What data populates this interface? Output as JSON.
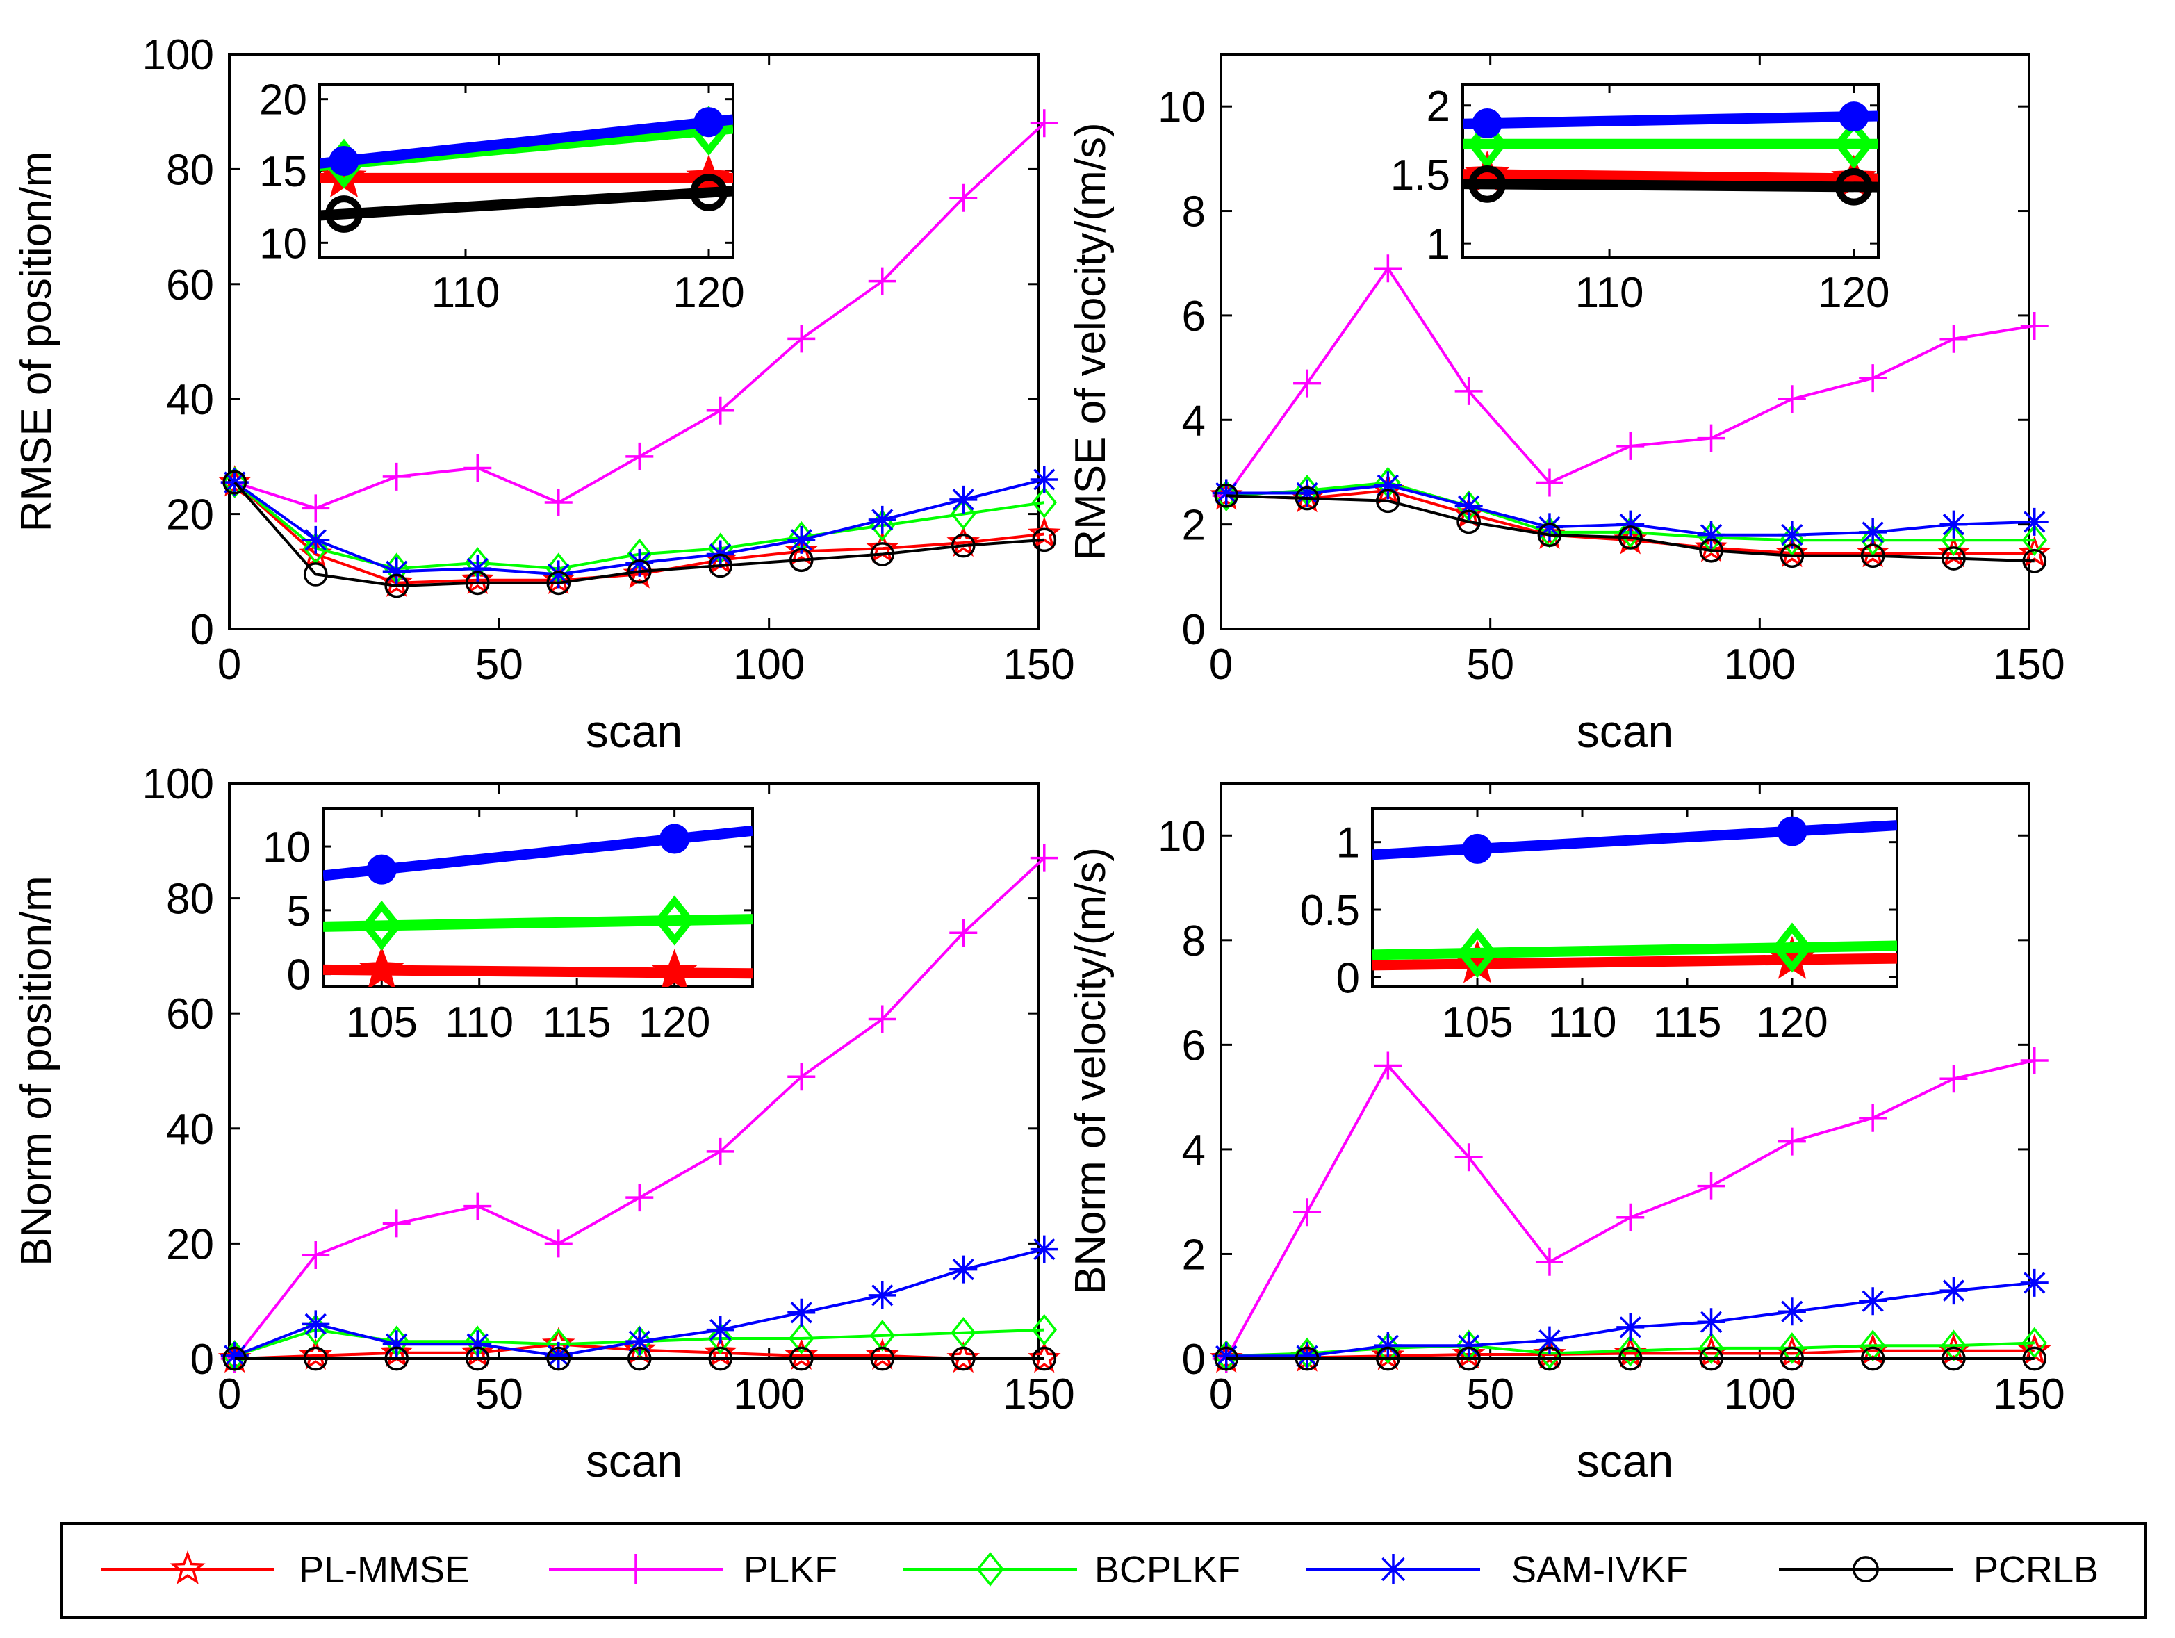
{
  "series_styles": [
    {
      "key": "pl_mmse",
      "color": "#ff0000",
      "marker": "star"
    },
    {
      "key": "plkf",
      "color": "#ff00ff",
      "marker": "plus"
    },
    {
      "key": "bcplkf",
      "color": "#00ff00",
      "marker": "diamond"
    },
    {
      "key": "sam_ivkf",
      "color": "#0000ff",
      "marker": "asterisk"
    },
    {
      "key": "pcrlb",
      "color": "#000000",
      "marker": "circle"
    }
  ],
  "legend": {
    "entries": [
      "PL-MMSE",
      "PLKF",
      "BCPLKF",
      "SAM-IVKF",
      "PCRLB"
    ]
  },
  "chart_data": [
    {
      "type": "line",
      "ylabel": "RMSE of position/m",
      "xlabel": "scan",
      "xlim": [
        0,
        150
      ],
      "ylim": [
        0,
        100
      ],
      "xticks": [
        0,
        50,
        100,
        150
      ],
      "yticks": [
        0,
        20,
        40,
        60,
        80,
        100
      ],
      "x": [
        1,
        16,
        31,
        46,
        61,
        76,
        91,
        106,
        121,
        136,
        151
      ],
      "series": [
        {
          "name": "PL-MMSE",
          "values": [
            25.5,
            13,
            8,
            8.5,
            8.5,
            9.5,
            12,
            13.5,
            14,
            15,
            16.5
          ]
        },
        {
          "name": "PLKF",
          "values": [
            25.5,
            21,
            26.5,
            28,
            22,
            30,
            38,
            50.5,
            60.5,
            75,
            88
          ]
        },
        {
          "name": "BCPLKF",
          "values": [
            25.5,
            14,
            10.5,
            11.5,
            10.5,
            13,
            14,
            16,
            18,
            20,
            22
          ]
        },
        {
          "name": "SAM-IVKF",
          "values": [
            25.5,
            15.5,
            10,
            10.5,
            9.5,
            11.5,
            13,
            15.5,
            19,
            22.5,
            26
          ]
        },
        {
          "name": "PCRLB",
          "values": [
            25.5,
            9.5,
            7.5,
            8,
            8,
            10,
            11,
            12,
            13,
            14.5,
            15.5
          ]
        }
      ],
      "inset": {
        "xlim": [
          104,
          121
        ],
        "ylim": [
          9,
          21
        ],
        "xticks": [
          110,
          120
        ],
        "yticks": [
          10,
          15,
          20
        ],
        "x": [
          105,
          120
        ],
        "series": [
          {
            "name": "PL-MMSE",
            "values": [
              14.5,
              14.5
            ]
          },
          {
            "name": "BCPLKF",
            "values": [
              15.5,
              17.8
            ]
          },
          {
            "name": "SAM-IVKF",
            "values": [
              15.7,
              18.4
            ]
          },
          {
            "name": "PCRLB",
            "values": [
              12,
              13.5
            ]
          }
        ]
      }
    },
    {
      "type": "line",
      "ylabel": "RMSE of velocity/(m/s)",
      "xlabel": "scan",
      "xlim": [
        0,
        150
      ],
      "ylim": [
        0,
        11
      ],
      "xticks": [
        0,
        50,
        100,
        150
      ],
      "yticks": [
        0,
        2,
        4,
        6,
        8,
        10
      ],
      "x": [
        1,
        16,
        31,
        46,
        61,
        76,
        91,
        106,
        121,
        136,
        151
      ],
      "series": [
        {
          "name": "PL-MMSE",
          "values": [
            2.55,
            2.5,
            2.65,
            2.2,
            1.8,
            1.7,
            1.55,
            1.45,
            1.45,
            1.45,
            1.45
          ]
        },
        {
          "name": "PLKF",
          "values": [
            2.55,
            4.7,
            6.9,
            4.55,
            2.8,
            3.5,
            3.65,
            4.4,
            4.8,
            5.55,
            5.8
          ]
        },
        {
          "name": "BCPLKF",
          "values": [
            2.55,
            2.65,
            2.8,
            2.35,
            1.85,
            1.85,
            1.75,
            1.7,
            1.7,
            1.7,
            1.7
          ]
        },
        {
          "name": "SAM-IVKF",
          "values": [
            2.6,
            2.6,
            2.75,
            2.35,
            1.95,
            2.0,
            1.8,
            1.8,
            1.85,
            2.0,
            2.05
          ]
        },
        {
          "name": "PCRLB",
          "values": [
            2.55,
            2.5,
            2.45,
            2.05,
            1.8,
            1.75,
            1.5,
            1.4,
            1.4,
            1.35,
            1.3
          ]
        }
      ],
      "inset": {
        "xlim": [
          104,
          121
        ],
        "ylim": [
          0.9,
          2.15
        ],
        "xticks": [
          110,
          120
        ],
        "yticks": [
          1,
          1.5,
          2
        ],
        "x": [
          105,
          120
        ],
        "series": [
          {
            "name": "PL-MMSE",
            "values": [
              1.5,
              1.47
            ]
          },
          {
            "name": "BCPLKF",
            "values": [
              1.72,
              1.72
            ]
          },
          {
            "name": "SAM-IVKF",
            "values": [
              1.87,
              1.92
            ]
          },
          {
            "name": "PCRLB",
            "values": [
              1.43,
              1.41
            ]
          }
        ]
      }
    },
    {
      "type": "line",
      "ylabel": "BNorm of position/m",
      "xlabel": "scan",
      "xlim": [
        0,
        150
      ],
      "ylim": [
        0,
        100
      ],
      "xticks": [
        0,
        50,
        100,
        150
      ],
      "yticks": [
        0,
        20,
        40,
        60,
        80,
        100
      ],
      "x": [
        1,
        16,
        31,
        46,
        61,
        76,
        91,
        106,
        121,
        136,
        151
      ],
      "series": [
        {
          "name": "PL-MMSE",
          "values": [
            0,
            0.5,
            1,
            1,
            2.5,
            1.5,
            1,
            0.5,
            0.5,
            0,
            0
          ]
        },
        {
          "name": "PLKF",
          "values": [
            0,
            18,
            23.5,
            26.5,
            20,
            28,
            36,
            49,
            59,
            74,
            87
          ]
        },
        {
          "name": "BCPLKF",
          "values": [
            0.5,
            5,
            3,
            3,
            2.5,
            3,
            3.5,
            3.5,
            4,
            4.5,
            5
          ]
        },
        {
          "name": "SAM-IVKF",
          "values": [
            0.5,
            6,
            2.5,
            2.5,
            0.5,
            3,
            5,
            8,
            11,
            15.5,
            19
          ]
        },
        {
          "name": "PCRLB",
          "values": [
            0,
            0,
            0,
            0,
            0,
            0,
            0,
            0,
            0,
            0,
            0
          ]
        }
      ],
      "inset": {
        "xlim": [
          102,
          124
        ],
        "ylim": [
          -1,
          13
        ],
        "xticks": [
          105,
          110,
          115,
          120
        ],
        "yticks": [
          0,
          5,
          10
        ],
        "x": [
          105,
          120
        ],
        "series": [
          {
            "name": "PL-MMSE",
            "values": [
              0.3,
              0.1
            ]
          },
          {
            "name": "BCPLKF",
            "values": [
              3.8,
              4.2
            ]
          },
          {
            "name": "SAM-IVKF",
            "values": [
              8.2,
              10.6
            ]
          }
        ]
      }
    },
    {
      "type": "line",
      "ylabel": "BNorm of velocity/(m/s)",
      "xlabel": "scan",
      "xlim": [
        0,
        150
      ],
      "ylim": [
        0,
        11
      ],
      "xticks": [
        0,
        50,
        100,
        150
      ],
      "yticks": [
        0,
        2,
        4,
        6,
        8,
        10
      ],
      "x": [
        1,
        16,
        31,
        46,
        61,
        76,
        91,
        106,
        121,
        136,
        151
      ],
      "series": [
        {
          "name": "PL-MMSE",
          "values": [
            0,
            0.02,
            0.05,
            0.08,
            0.08,
            0.1,
            0.1,
            0.1,
            0.15,
            0.15,
            0.15
          ]
        },
        {
          "name": "PLKF",
          "values": [
            0,
            2.8,
            5.6,
            3.85,
            1.85,
            2.7,
            3.3,
            4.15,
            4.6,
            5.35,
            5.7
          ]
        },
        {
          "name": "BCPLKF",
          "values": [
            0.05,
            0.1,
            0.2,
            0.25,
            0.1,
            0.15,
            0.2,
            0.2,
            0.25,
            0.25,
            0.3
          ]
        },
        {
          "name": "SAM-IVKF",
          "values": [
            0.05,
            0.05,
            0.25,
            0.25,
            0.35,
            0.6,
            0.7,
            0.9,
            1.1,
            1.3,
            1.45
          ]
        },
        {
          "name": "PCRLB",
          "values": [
            0,
            0,
            0,
            0,
            0,
            0,
            0,
            0,
            0,
            0,
            0
          ]
        }
      ],
      "inset": {
        "xlim": [
          100,
          125
        ],
        "ylim": [
          -0.07,
          1.25
        ],
        "xticks": [
          105,
          110,
          115,
          120
        ],
        "yticks": [
          0,
          0.5,
          1
        ],
        "x": [
          105,
          120
        ],
        "series": [
          {
            "name": "PL-MMSE",
            "values": [
              0.1,
              0.13
            ]
          },
          {
            "name": "BCPLKF",
            "values": [
              0.18,
              0.22
            ]
          },
          {
            "name": "SAM-IVKF",
            "values": [
              0.95,
              1.08
            ]
          }
        ]
      }
    }
  ]
}
